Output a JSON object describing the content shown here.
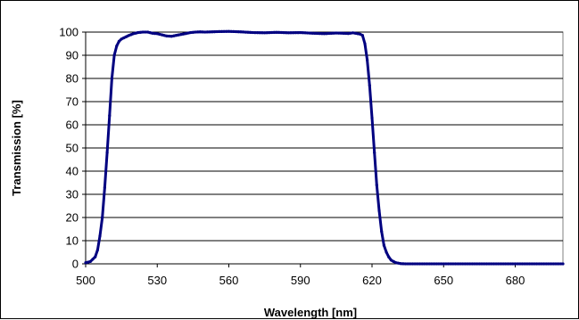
{
  "chart_data": {
    "type": "line",
    "title": "",
    "xlabel": "Wavelength [nm]",
    "ylabel": "Transmission [%]",
    "xlim": [
      500,
      700
    ],
    "ylim": [
      0,
      100
    ],
    "x_ticks": [
      500,
      530,
      560,
      590,
      620,
      650,
      680
    ],
    "y_ticks": [
      0,
      10,
      20,
      30,
      40,
      50,
      60,
      70,
      80,
      90,
      100
    ],
    "grid": "horizontal",
    "legend": "none",
    "line_color": "#000080",
    "series": [
      {
        "x": [
          500,
          502,
          504,
          505,
          506,
          507,
          508,
          509,
          510,
          511,
          512,
          513,
          514,
          515,
          516,
          518,
          520,
          522,
          524,
          526,
          528,
          530,
          532,
          534,
          536,
          538,
          540,
          542,
          544,
          546,
          548,
          550,
          555,
          560,
          565,
          570,
          575,
          580,
          585,
          590,
          595,
          600,
          605,
          610,
          612,
          614,
          615,
          616,
          617,
          618,
          619,
          620,
          621,
          622,
          623,
          624,
          625,
          626,
          627,
          628,
          629,
          630,
          631,
          632,
          634,
          636,
          640,
          650,
          660,
          670,
          680,
          690,
          700
        ],
        "y": [
          0.5,
          1,
          3,
          6,
          12,
          20,
          33,
          48,
          64,
          80,
          90,
          94,
          96,
          97,
          97.5,
          98.5,
          99.3,
          99.8,
          100,
          100,
          99.5,
          99.3,
          98.8,
          98.3,
          98.2,
          98.6,
          99,
          99.4,
          99.8,
          100,
          100.1,
          100,
          100.2,
          100.3,
          100.1,
          99.8,
          99.7,
          99.9,
          99.7,
          99.8,
          99.5,
          99.3,
          99.6,
          99.4,
          99.7,
          99.3,
          99.1,
          98.6,
          95,
          88,
          77,
          63,
          48,
          34,
          23,
          14,
          8,
          5,
          3,
          1.6,
          1,
          0.5,
          0.3,
          0.1,
          0,
          0,
          0,
          0,
          0,
          0,
          0,
          0,
          0
        ]
      }
    ]
  }
}
